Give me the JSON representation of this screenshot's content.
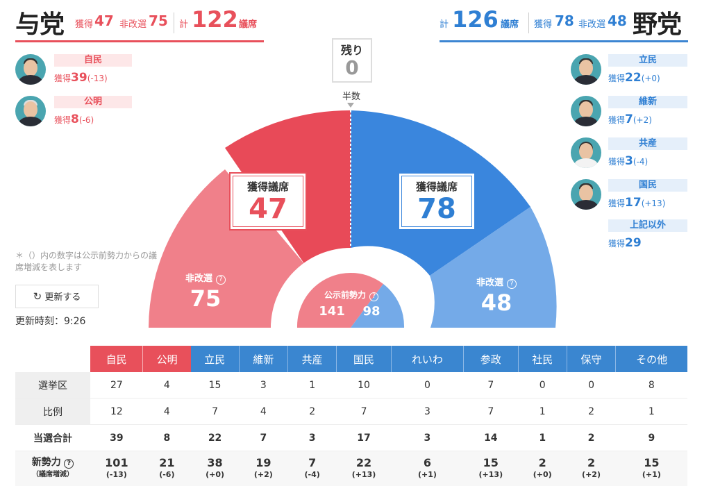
{
  "ruling": {
    "title": "与党",
    "won_label": "獲得",
    "won": "47",
    "not_up_label": "非改選",
    "not_up": "75",
    "total_label": "計",
    "total": "122",
    "seats_suffix": "議席",
    "parties": [
      {
        "name": "自民",
        "won_label": "獲得",
        "won": "39",
        "change": "(-13)"
      },
      {
        "name": "公明",
        "won_label": "獲得",
        "won": "8",
        "change": "(-6)"
      }
    ]
  },
  "opposition": {
    "title": "野党",
    "won_label": "獲得",
    "won": "78",
    "not_up_label": "非改選",
    "not_up": "48",
    "total_label": "計",
    "total": "126",
    "seats_suffix": "議席",
    "parties": [
      {
        "name": "立民",
        "won_label": "獲得",
        "won": "22",
        "change": "(+0)"
      },
      {
        "name": "維新",
        "won_label": "獲得",
        "won": "7",
        "change": "(+2)"
      },
      {
        "name": "共産",
        "won_label": "獲得",
        "won": "3",
        "change": "(-4)"
      },
      {
        "name": "国民",
        "won_label": "獲得",
        "won": "17",
        "change": "(+13)"
      },
      {
        "name": "上記以外",
        "won_label": "獲得",
        "won": "29",
        "change": ""
      }
    ]
  },
  "remaining": {
    "label": "残り",
    "value": "0"
  },
  "majority_label": "半数",
  "chart": {
    "won_label": "獲得議席",
    "ruling_won": "47",
    "opposition_won": "78",
    "not_up_label": "非改選",
    "ruling_not_up": "75",
    "opposition_not_up": "48",
    "pre_label": "公示前勢力",
    "ruling_pre": "141",
    "opposition_pre": "98",
    "colors": {
      "ruling_dark": "#e8505b",
      "ruling_light": "#f08088",
      "opp_dark": "#3a86dd",
      "opp_light": "#74a9e7"
    }
  },
  "note": "＊（）内の数字は公示前勢力からの議席増減を表します",
  "refresh_label": "更新する",
  "updated": "更新時刻：9:26",
  "table": {
    "headers": [
      "自民",
      "公明",
      "立民",
      "維新",
      "共産",
      "国民",
      "れいわ",
      "参政",
      "社民",
      "保守",
      "その他"
    ],
    "header_colors": [
      "#e8505b",
      "#e8505b",
      "#3a86d0",
      "#3a86d0",
      "#3a86d0",
      "#3a86d0",
      "#3a86d0",
      "#3a86d0",
      "#3a86d0",
      "#3a86d0",
      "#3a86d0"
    ],
    "rows": [
      {
        "label": "選挙区",
        "values": [
          "27",
          "4",
          "15",
          "3",
          "1",
          "10",
          "0",
          "7",
          "0",
          "0",
          "8"
        ]
      },
      {
        "label": "比例",
        "values": [
          "12",
          "4",
          "7",
          "4",
          "2",
          "7",
          "3",
          "7",
          "1",
          "2",
          "1"
        ]
      },
      {
        "label": "当選合計",
        "values": [
          "39",
          "8",
          "22",
          "7",
          "3",
          "17",
          "3",
          "14",
          "1",
          "2",
          "9"
        ]
      }
    ],
    "strength_label": "新勢力",
    "strength_sub": "（議席増減）",
    "strength": [
      "101",
      "21",
      "38",
      "19",
      "7",
      "22",
      "6",
      "15",
      "2",
      "2",
      "15"
    ],
    "strength_change": [
      "(-13)",
      "(-6)",
      "(+0)",
      "(+2)",
      "(-4)",
      "(+13)",
      "(+1)",
      "(+13)",
      "(+0)",
      "(+2)",
      "(+1)"
    ]
  }
}
